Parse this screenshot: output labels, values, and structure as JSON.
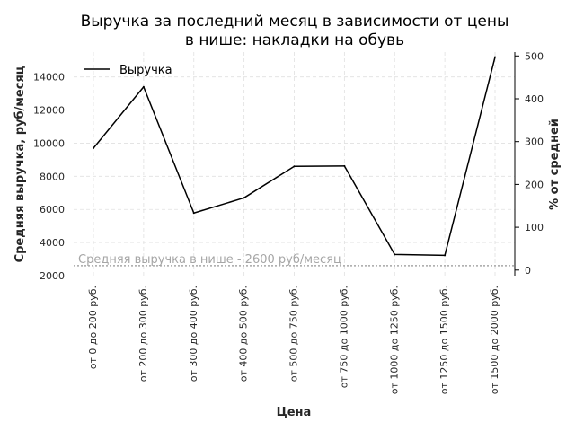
{
  "chart_data": {
    "type": "line",
    "title_lines": [
      "Выручка за последний месяц в зависимости от цены",
      "в нише: накладки на обувь"
    ],
    "xlabel": "Цена",
    "ylabel": "Средняя выручка, руб/месяц",
    "ylabel_right": "% от средней",
    "categories": [
      "от 0 до 200 руб.",
      "от 200 до 300 руб.",
      "от 300 до 400 руб.",
      "от 400 до 500 руб.",
      "от 500 до 750 руб.",
      "от 750 до 1000 руб.",
      "от 1000 до 1250 руб.",
      "от 1250 до 1500 руб.",
      "от 1500 до 2000 руб."
    ],
    "series": [
      {
        "name": "Выручка",
        "color": "#000000",
        "values": [
          9700,
          13400,
          5780,
          6700,
          8600,
          8620,
          3280,
          3230,
          15200
        ]
      }
    ],
    "ylim": [
      2000,
      15500
    ],
    "yticks": [
      2000,
      4000,
      6000,
      8000,
      10000,
      12000,
      14000
    ],
    "ylim_right": [
      -13,
      509
    ],
    "yticks_right": [
      0,
      100,
      200,
      300,
      400,
      500
    ],
    "average": {
      "value": 2600,
      "label": "Средняя выручка в нише - 2600 руб/месяц",
      "color": "#a6a6a6"
    },
    "legend_position": "top-left",
    "grid": true
  }
}
